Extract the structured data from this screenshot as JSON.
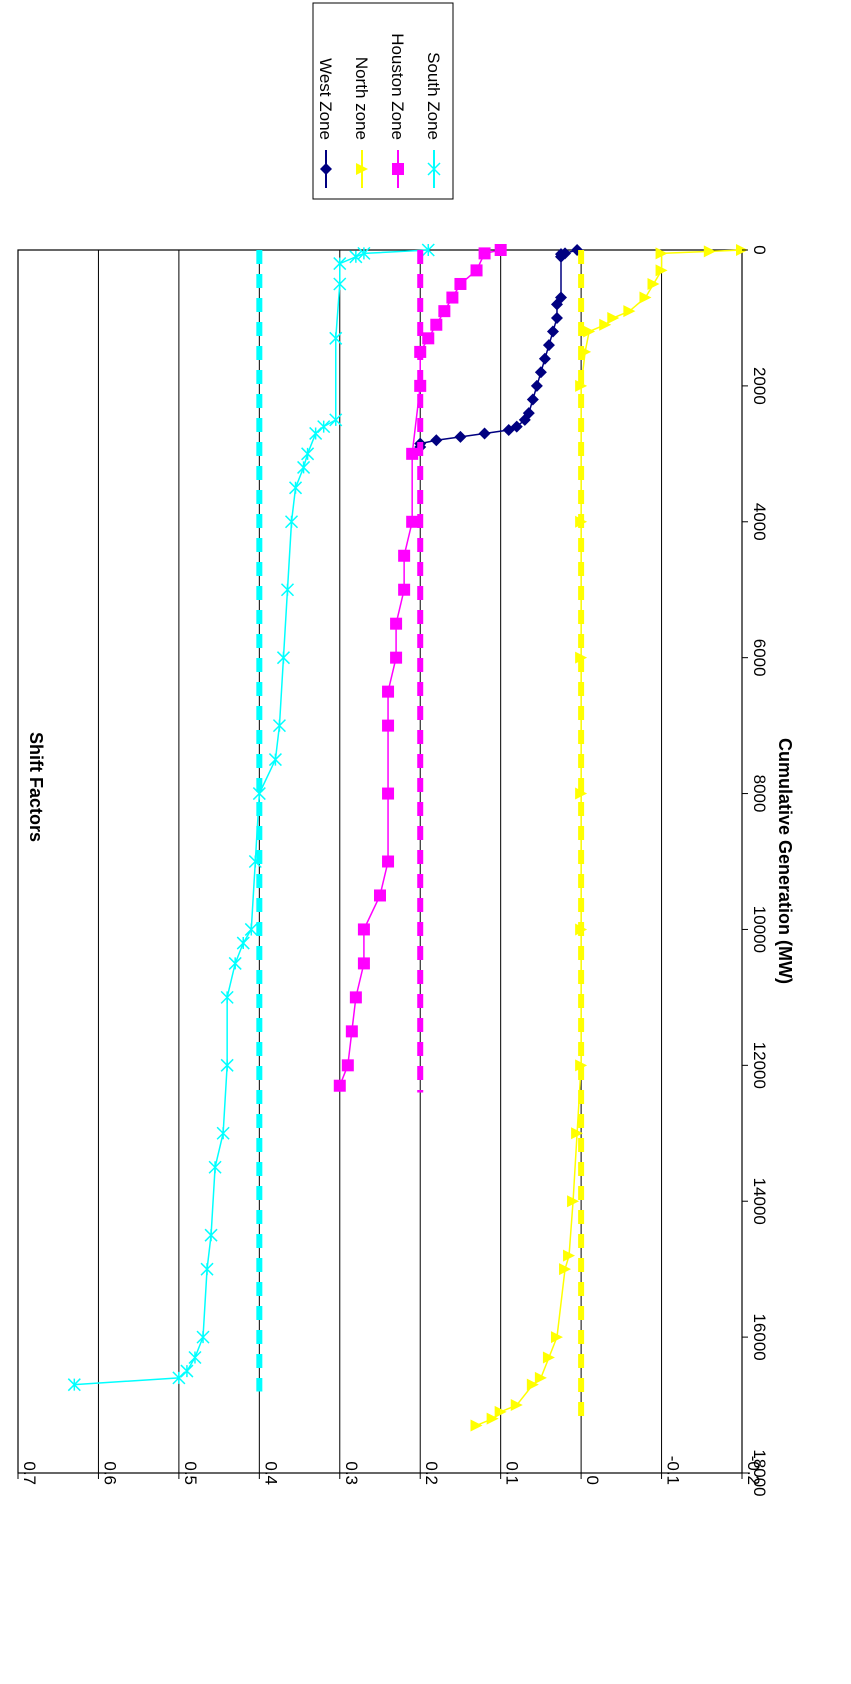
{
  "chart_data": {
    "type": "line",
    "title": "",
    "xlabel": "Cumulative Generation (MW)",
    "ylabel": "Shift Factors",
    "xlim": [
      0,
      18000
    ],
    "ylim": [
      -0.2,
      0.7
    ],
    "xticks": [
      "0",
      "2000",
      "4000",
      "6000",
      "8000",
      "10000",
      "12000",
      "14000",
      "16000",
      "18000"
    ],
    "yticks": [
      "-0.2",
      "-0.1",
      "0",
      "0.1",
      "0.2",
      "0.3",
      "0.4",
      "0.5",
      "0.6",
      "0.7"
    ],
    "grid": "horizontal",
    "legend_position": "right",
    "orientation": "rotated-90",
    "series": [
      {
        "name": "West Zone",
        "color": "#000080",
        "marker": "diamond",
        "points": [
          [
            0,
            0.005
          ],
          [
            50,
            0.02
          ],
          [
            60,
            0.025
          ],
          [
            100,
            0.025
          ],
          [
            700,
            0.025
          ],
          [
            800,
            0.03
          ],
          [
            1000,
            0.03
          ],
          [
            1200,
            0.035
          ],
          [
            1400,
            0.04
          ],
          [
            1600,
            0.045
          ],
          [
            1800,
            0.05
          ],
          [
            2000,
            0.055
          ],
          [
            2200,
            0.06
          ],
          [
            2400,
            0.065
          ],
          [
            2500,
            0.07
          ],
          [
            2600,
            0.08
          ],
          [
            2650,
            0.09
          ],
          [
            2700,
            0.12
          ],
          [
            2750,
            0.15
          ],
          [
            2800,
            0.18
          ],
          [
            2850,
            0.2
          ],
          [
            2900,
            0.2
          ]
        ]
      },
      {
        "name": "North zone",
        "color": "#FFFF00",
        "marker": "triangle",
        "points": [
          [
            0,
            -0.2
          ],
          [
            20,
            -0.16
          ],
          [
            50,
            -0.1
          ],
          [
            300,
            -0.1
          ],
          [
            500,
            -0.09
          ],
          [
            700,
            -0.08
          ],
          [
            900,
            -0.06
          ],
          [
            1000,
            -0.04
          ],
          [
            1100,
            -0.03
          ],
          [
            1200,
            -0.01
          ],
          [
            1500,
            -0.005
          ],
          [
            2000,
            0
          ],
          [
            4000,
            0
          ],
          [
            6000,
            0
          ],
          [
            8000,
            0
          ],
          [
            10000,
            0
          ],
          [
            12000,
            0
          ],
          [
            13000,
            0.005
          ],
          [
            14000,
            0.01
          ],
          [
            14800,
            0.015
          ],
          [
            15000,
            0.02
          ],
          [
            16000,
            0.03
          ],
          [
            16300,
            0.04
          ],
          [
            16600,
            0.05
          ],
          [
            16700,
            0.06
          ],
          [
            17000,
            0.08
          ],
          [
            17100,
            0.1
          ],
          [
            17200,
            0.11
          ],
          [
            17300,
            0.13
          ]
        ]
      },
      {
        "name": "Houston Zone",
        "color": "#FF00FF",
        "marker": "square",
        "points": [
          [
            0,
            0.1
          ],
          [
            50,
            0.12
          ],
          [
            300,
            0.13
          ],
          [
            500,
            0.15
          ],
          [
            700,
            0.16
          ],
          [
            900,
            0.17
          ],
          [
            1100,
            0.18
          ],
          [
            1300,
            0.19
          ],
          [
            1500,
            0.2
          ],
          [
            2000,
            0.2
          ],
          [
            3000,
            0.21
          ],
          [
            4000,
            0.21
          ],
          [
            4500,
            0.22
          ],
          [
            5000,
            0.22
          ],
          [
            5500,
            0.23
          ],
          [
            6000,
            0.23
          ],
          [
            6500,
            0.24
          ],
          [
            7000,
            0.24
          ],
          [
            8000,
            0.24
          ],
          [
            9000,
            0.24
          ],
          [
            9500,
            0.25
          ],
          [
            10000,
            0.27
          ],
          [
            10500,
            0.27
          ],
          [
            11000,
            0.28
          ],
          [
            11500,
            0.285
          ],
          [
            12000,
            0.29
          ],
          [
            12300,
            0.3
          ]
        ]
      },
      {
        "name": "South Zone",
        "color": "#00FFFF",
        "marker": "x",
        "points": [
          [
            0,
            0.19
          ],
          [
            50,
            0.27
          ],
          [
            100,
            0.28
          ],
          [
            200,
            0.3
          ],
          [
            500,
            0.3
          ],
          [
            1300,
            0.305
          ],
          [
            2500,
            0.305
          ],
          [
            2600,
            0.32
          ],
          [
            2700,
            0.33
          ],
          [
            3000,
            0.34
          ],
          [
            3200,
            0.345
          ],
          [
            3500,
            0.355
          ],
          [
            4000,
            0.36
          ],
          [
            5000,
            0.365
          ],
          [
            6000,
            0.37
          ],
          [
            7000,
            0.375
          ],
          [
            7500,
            0.38
          ],
          [
            8000,
            0.4
          ],
          [
            9000,
            0.405
          ],
          [
            10000,
            0.41
          ],
          [
            10200,
            0.42
          ],
          [
            10500,
            0.43
          ],
          [
            11000,
            0.44
          ],
          [
            12000,
            0.44
          ],
          [
            13000,
            0.445
          ],
          [
            13500,
            0.455
          ],
          [
            14500,
            0.46
          ],
          [
            15000,
            0.465
          ],
          [
            16000,
            0.47
          ],
          [
            16300,
            0.48
          ],
          [
            16500,
            0.49
          ],
          [
            16600,
            0.5
          ],
          [
            16700,
            0.63
          ]
        ]
      },
      {
        "name": "",
        "color": "#00FFFF",
        "marker": "dash",
        "points": [
          [
            0,
            0.4
          ],
          [
            16800,
            0.4
          ]
        ]
      },
      {
        "name": "",
        "color": "#FF00FF",
        "marker": "dash",
        "points": [
          [
            0,
            0.2
          ],
          [
            12400,
            0.2
          ]
        ]
      },
      {
        "name": "",
        "color": "#FFFF00",
        "marker": "dash",
        "points": [
          [
            0,
            0
          ],
          [
            17300,
            0
          ]
        ]
      }
    ]
  }
}
